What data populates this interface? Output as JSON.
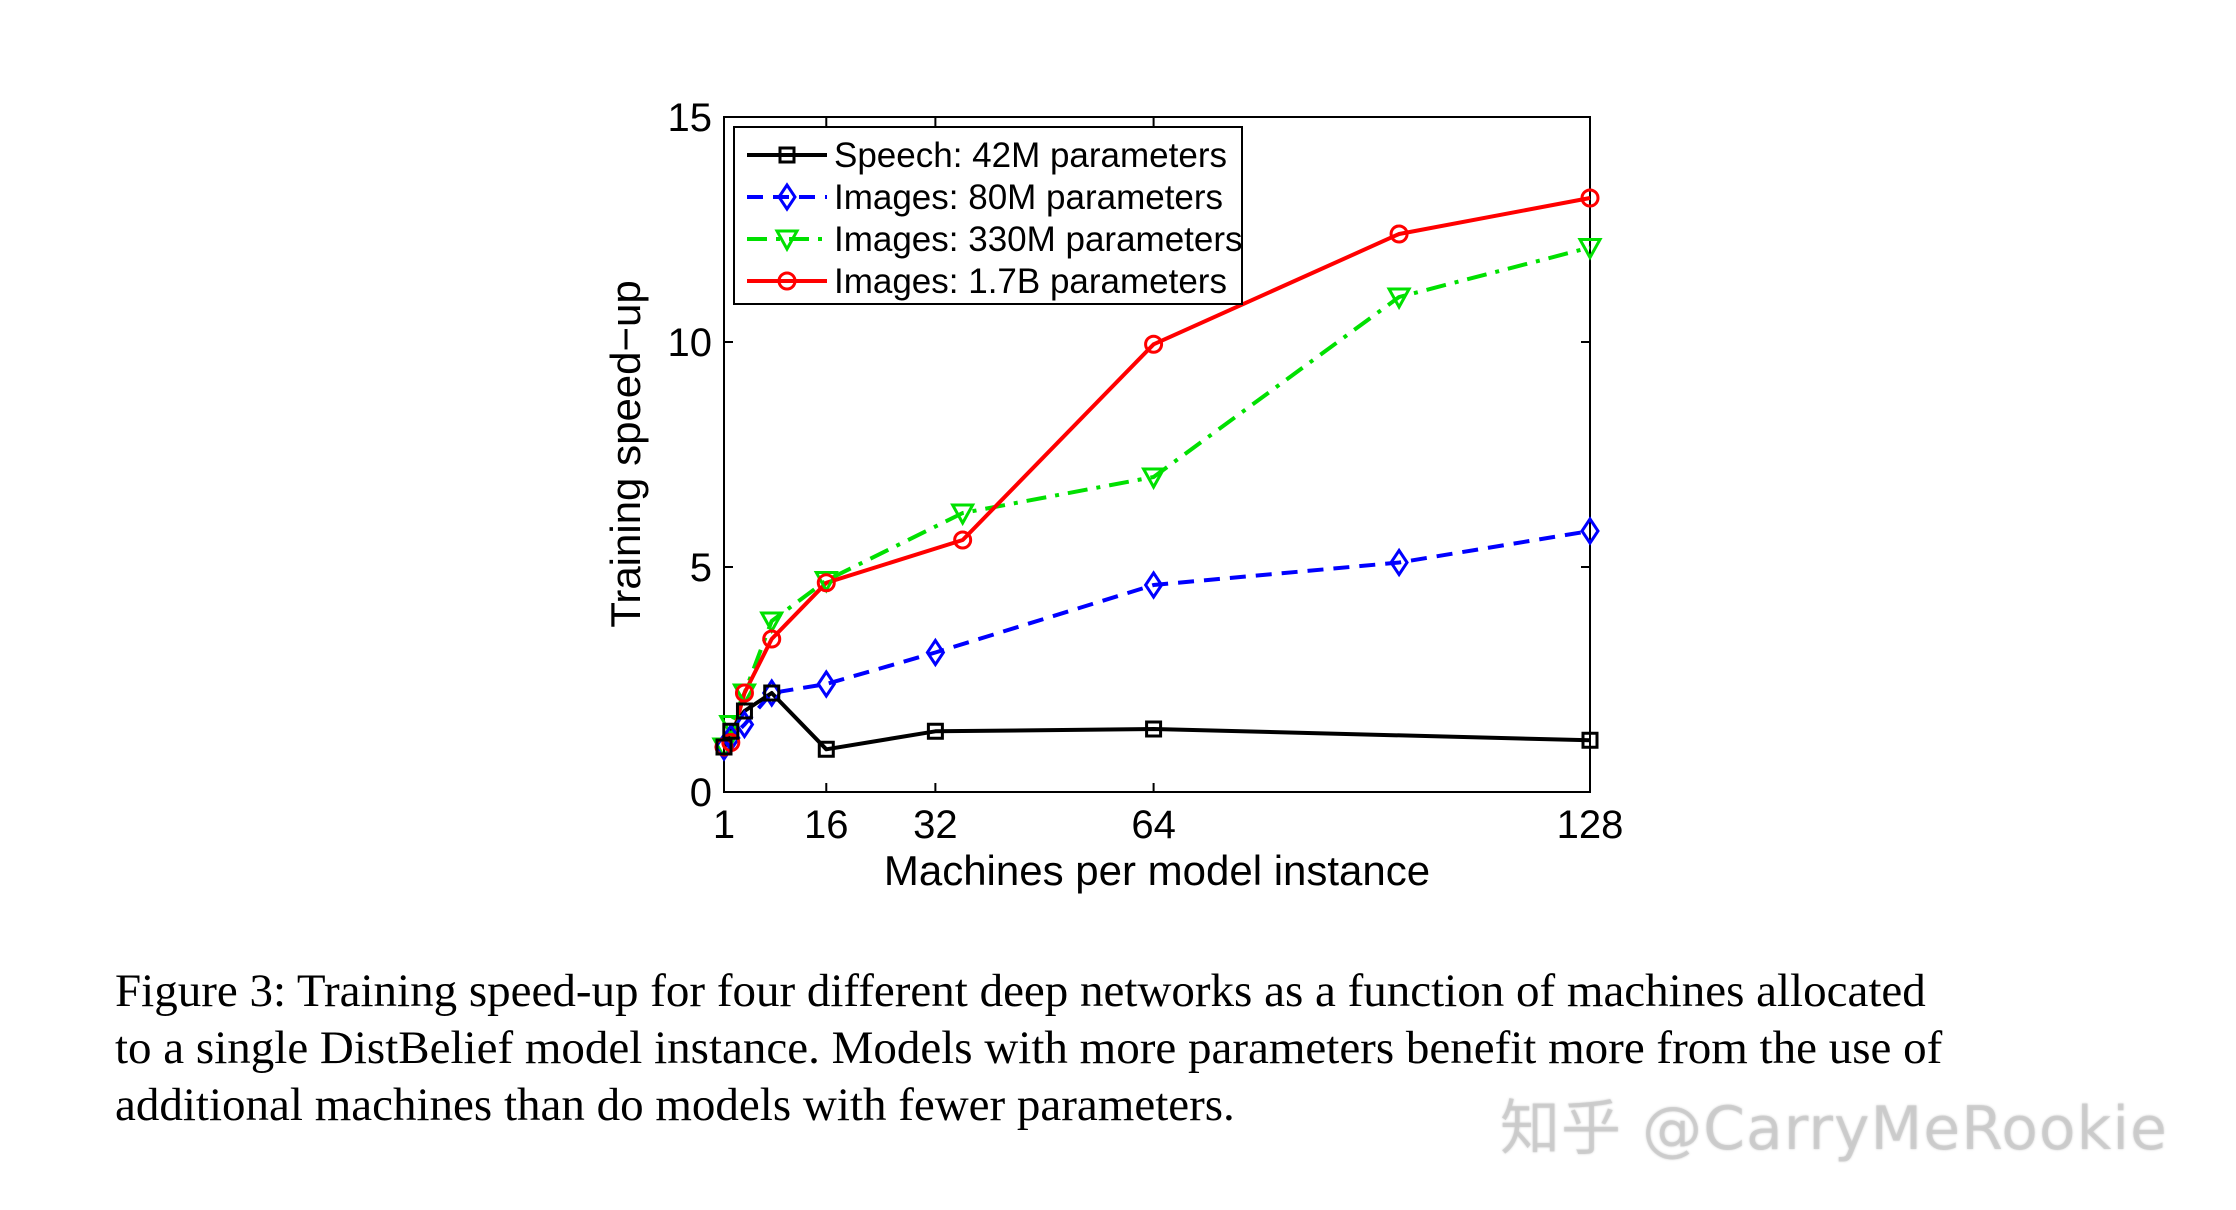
{
  "chart_data": {
    "type": "line",
    "xlabel": "Machines per model instance",
    "ylabel": "Training speed−up",
    "xlim": [
      1,
      128
    ],
    "ylim": [
      0,
      15
    ],
    "xticks": [
      1,
      16,
      32,
      64,
      128
    ],
    "yticks": [
      0,
      5,
      10,
      15
    ],
    "legend_position": "top-left",
    "series": [
      {
        "name": "Speech: 42M parameters",
        "color": "#000000",
        "dash": "solid",
        "marker": "square",
        "x": [
          1,
          2,
          4,
          8,
          16,
          32,
          64,
          128
        ],
        "y": [
          1.0,
          1.35,
          1.8,
          2.2,
          0.95,
          1.35,
          1.4,
          1.15
        ]
      },
      {
        "name": "Images: 80M parameters",
        "color": "#0000ff",
        "dash": "dashed",
        "marker": "diamond",
        "x": [
          1,
          2,
          4,
          8,
          16,
          32,
          64,
          100,
          128
        ],
        "y": [
          1.0,
          1.2,
          1.5,
          2.2,
          2.4,
          3.1,
          4.6,
          5.1,
          5.8
        ]
      },
      {
        "name": "Images: 330M parameters",
        "color": "#00e000",
        "dash": "dashdot",
        "marker": "triangle-down",
        "x": [
          1,
          2,
          4,
          8,
          16,
          36,
          64,
          100,
          128
        ],
        "y": [
          1.0,
          1.5,
          2.2,
          3.8,
          4.7,
          6.2,
          7.0,
          11.0,
          12.1
        ]
      },
      {
        "name": "Images: 1.7B parameters",
        "color": "#ff0000",
        "dash": "solid",
        "marker": "circle",
        "x": [
          1,
          2,
          4,
          8,
          16,
          36,
          64,
          100,
          128
        ],
        "y": [
          1.0,
          1.1,
          2.2,
          3.4,
          4.65,
          5.6,
          9.95,
          12.4,
          13.2
        ]
      }
    ]
  },
  "caption": {
    "line1": "Figure 3: Training speed-up for four different deep networks as a function of machines allocated",
    "line2": "to a single DistBelief model instance. Models with more parameters benefit more from the use of",
    "line3": "additional machines than do models with fewer parameters."
  },
  "watermark": {
    "text": "知乎 @CarryMeRookie"
  }
}
